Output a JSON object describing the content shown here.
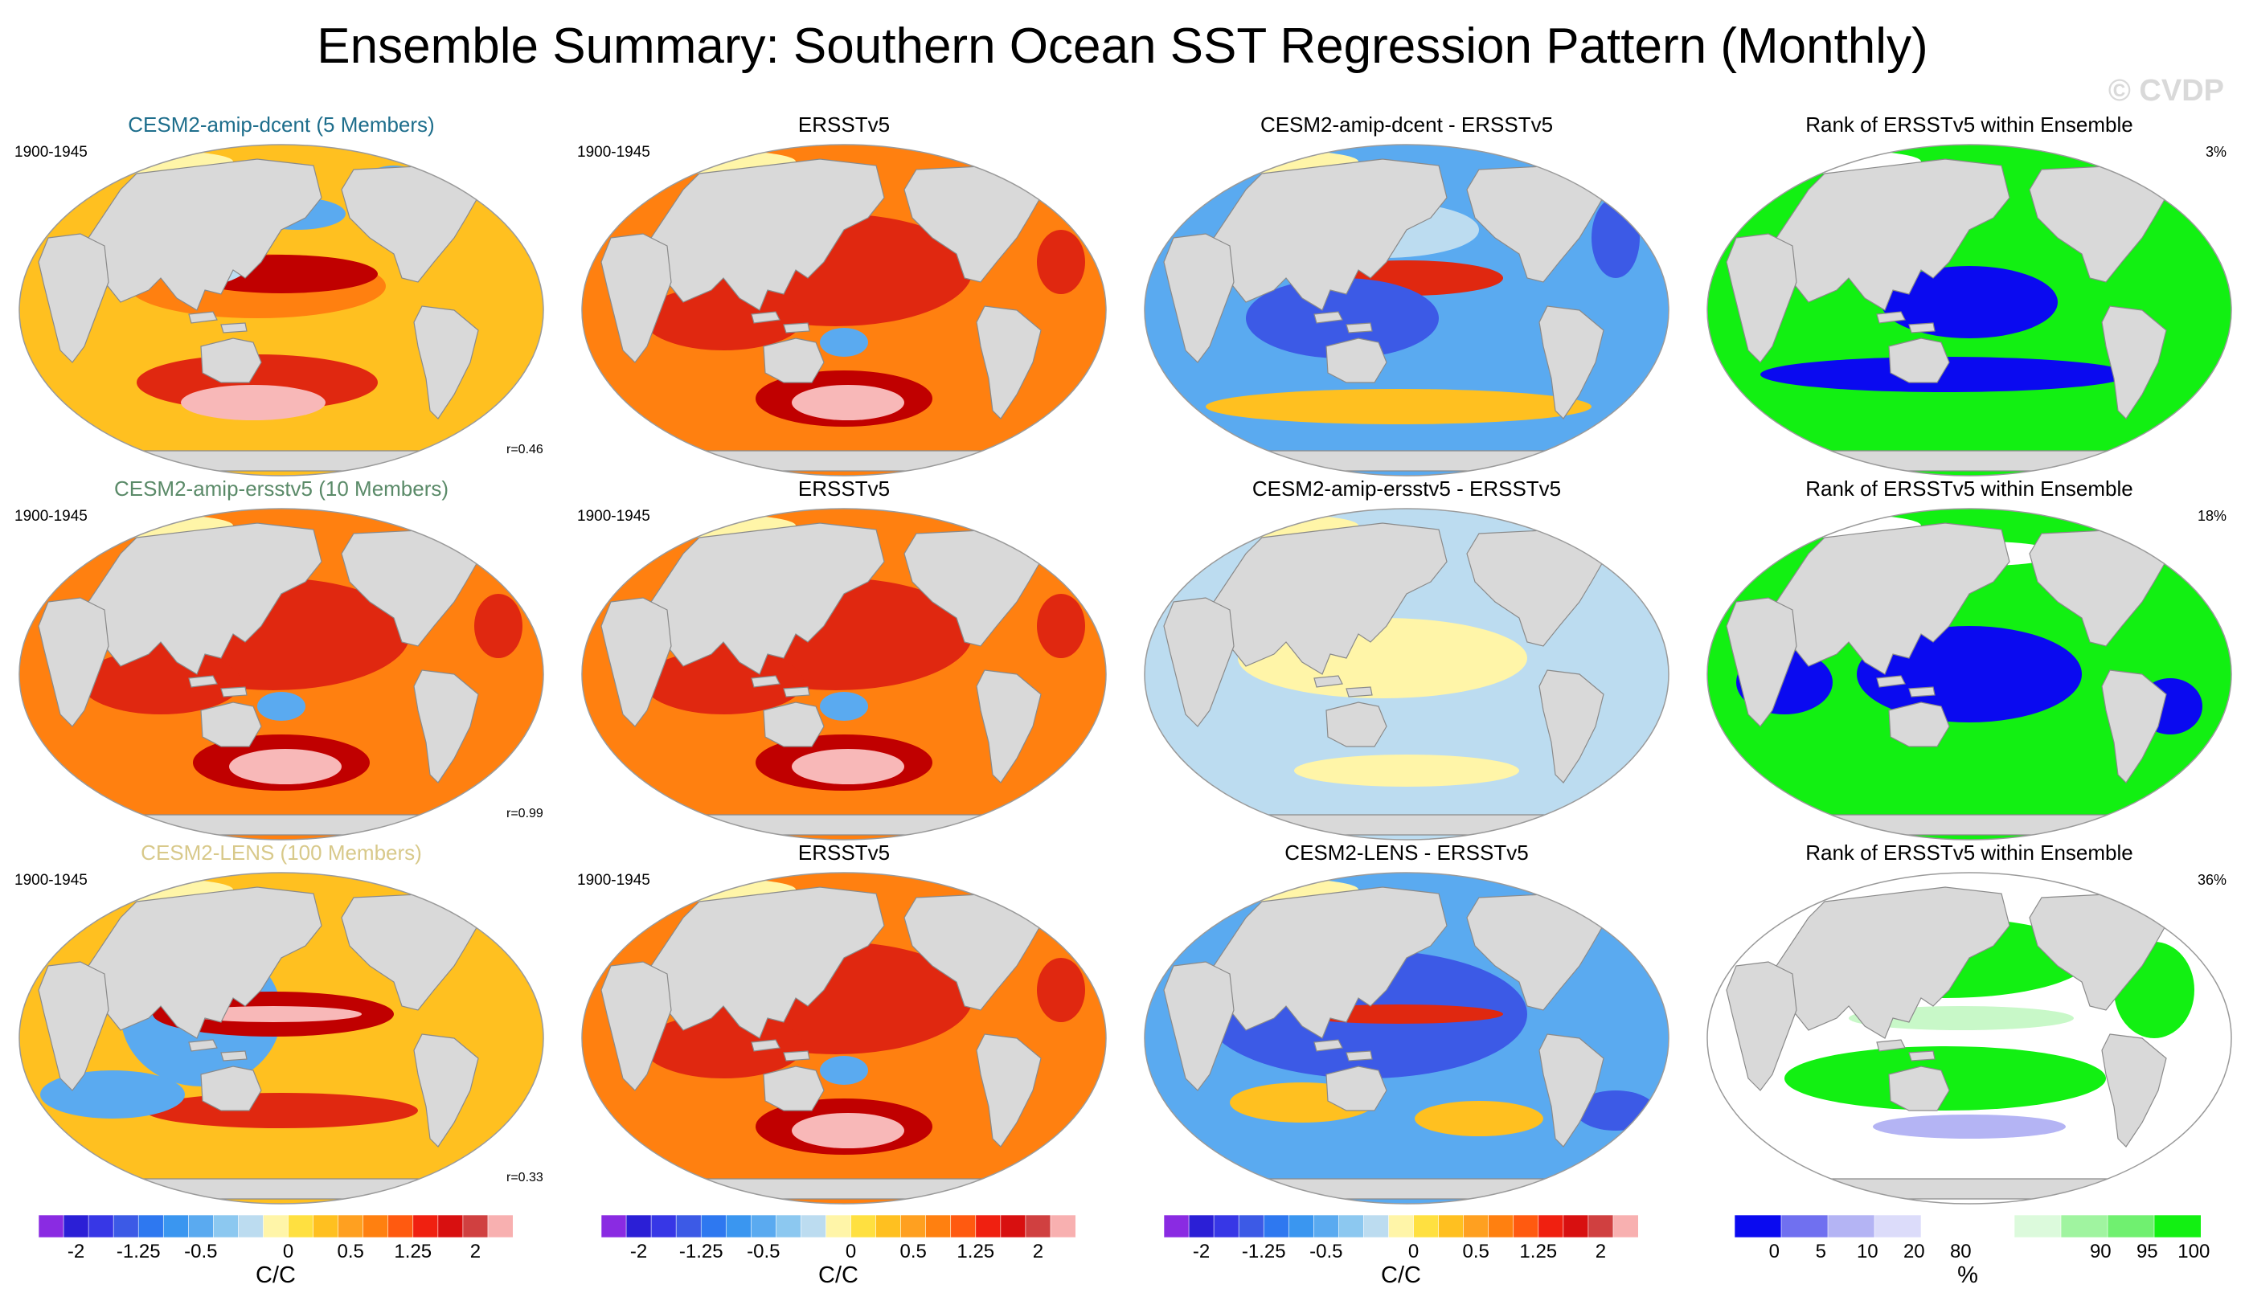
{
  "figure": {
    "title": "Ensemble Summary: Southern Ocean SST Regression Pattern (Monthly)",
    "watermark": "© CVDP"
  },
  "rows": [
    {
      "model": {
        "title": "CESM2-amip-dcent (5 Members)",
        "title_color": "#1e6e8c",
        "period": "1900-1945",
        "correlation": "r=0.46",
        "pattern": "dcent"
      },
      "obs": {
        "title": "ERSSTv5",
        "period": "1900-1945",
        "pattern": "obs"
      },
      "diff": {
        "title": "CESM2-amip-dcent - ERSSTv5",
        "pattern": "diff_dcent"
      },
      "rank": {
        "title": "Rank of ERSSTv5 within Ensemble",
        "percent": "3%",
        "pattern": "rank_dcent"
      }
    },
    {
      "model": {
        "title": "CESM2-amip-ersstv5 (10 Members)",
        "title_color": "#5a8a68",
        "period": "1900-1945",
        "correlation": "r=0.99",
        "pattern": "ersst_model"
      },
      "obs": {
        "title": "ERSSTv5",
        "period": "1900-1945",
        "pattern": "obs"
      },
      "diff": {
        "title": "CESM2-amip-ersstv5 - ERSSTv5",
        "pattern": "diff_ersst"
      },
      "rank": {
        "title": "Rank of ERSSTv5 within Ensemble",
        "percent": "18%",
        "pattern": "rank_ersst"
      }
    },
    {
      "model": {
        "title": "CESM2-LENS (100 Members)",
        "title_color": "#d8c98a",
        "period": "1900-1945",
        "correlation": "r=0.33",
        "pattern": "lens"
      },
      "obs": {
        "title": "ERSSTv5",
        "period": "1900-1945",
        "pattern": "obs"
      },
      "diff": {
        "title": "CESM2-LENS - ERSSTv5",
        "pattern": "diff_lens"
      },
      "rank": {
        "title": "Rank of ERSSTv5 within Ensemble",
        "percent": "36%",
        "pattern": "rank_lens"
      }
    }
  ],
  "colorbars": {
    "sst": {
      "unit": "C/C",
      "ticks": [
        "-2",
        "-1.25",
        "-0.5",
        "0",
        "0.5",
        "1.25",
        "2"
      ],
      "colors": [
        "#8a2be2",
        "#2b1fd6",
        "#3737e6",
        "#3c5ae6",
        "#2e78f0",
        "#3a96f0",
        "#5aaaf0",
        "#8cc8f0",
        "#bcdcf0",
        "#fff5a8",
        "#ffe040",
        "#ffc020",
        "#ffa020",
        "#ff8010",
        "#ff5a10",
        "#f02010",
        "#d81010",
        "#d04040",
        "#f8b0b0"
      ]
    },
    "rank": {
      "unit": "%",
      "ticks": [
        "0",
        "5",
        "10",
        "20",
        "80",
        "90",
        "95",
        "100"
      ],
      "colors": [
        "#0a0af0",
        "#7070f0",
        "#b4b4f4",
        "#dcdcfa",
        "#ffffff",
        "#ffffff",
        "#dcfadc",
        "#a0f4a0",
        "#70f070",
        "#12f012"
      ]
    }
  },
  "palette": {
    "land": "#d9d9d9",
    "coast": "#8a8a8a",
    "ocean_warm_low": "#ffc020",
    "ocean_warm_mid": "#ff8010",
    "ocean_warm_high": "#e02810",
    "ocean_peak": "#c00000",
    "ocean_pink": "#f8b8b8",
    "ocean_cool": "#5aaaf0",
    "ocean_blue": "#3c5ae6",
    "ocean_lightblue": "#bcdcf0",
    "ocean_yellow": "#fff5a8",
    "rank_green": "#12f012",
    "rank_blue": "#0a0af0",
    "rank_lightgreen": "#c8f8c8"
  }
}
